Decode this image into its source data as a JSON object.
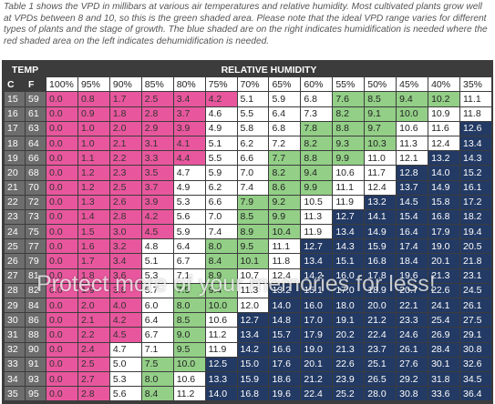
{
  "caption": "Table 1 shows the VPD in millibars at various air temperatures and relative humidity. Most cultivated plants grow well at VPDs between 8 and 10, so this is the green shaded area. Please note that the ideal VPD range varies for different types of plants and the stage of growth. The blue shaded are on the right indicates humidification is needed where the red shaded area on the left indicates dehumidification is needed.",
  "watermark": "Protect more of your memories for less!",
  "colors": {
    "R": "#e8579d",
    "G": "#93cf87",
    "B": "#233a64",
    "W": "#ffffff"
  },
  "text_colors": {
    "R": "#333333",
    "G": "#222222",
    "B": "#ffffff",
    "W": "#222222"
  },
  "table": {
    "temp_header": "TEMP",
    "rh_header": "RELATIVE HUMIDITY",
    "c_header": "C",
    "f_header": "F",
    "columns": [
      "100%",
      "95%",
      "90%",
      "85%",
      "80%",
      "75%",
      "70%",
      "65%",
      "60%",
      "55%",
      "50%",
      "45%",
      "40%",
      "35%"
    ],
    "rows": [
      {
        "c": "15",
        "f": "59",
        "values": [
          "0.0",
          "0.8",
          "1.7",
          "2.5",
          "3.4",
          "4.2",
          "5.1",
          "5.9",
          "6.8",
          "7.6",
          "8.5",
          "9.4",
          "10.2",
          "11.1"
        ],
        "shading": "RRRRRRWWWGGGGW"
      },
      {
        "c": "16",
        "f": "61",
        "values": [
          "0.0",
          "0.9",
          "1.8",
          "2.8",
          "3.7",
          "4.6",
          "5.5",
          "6.4",
          "7.3",
          "8.2",
          "9.1",
          "10.0",
          "10.9",
          "11.8"
        ],
        "shading": "RRRRRWWWWGGGWW"
      },
      {
        "c": "17",
        "f": "63",
        "values": [
          "0.0",
          "1.0",
          "2.0",
          "2.9",
          "3.9",
          "4.9",
          "5.8",
          "6.8",
          "7.8",
          "8.8",
          "9.7",
          "10.6",
          "11.6",
          "12.6"
        ],
        "shading": "RRRRRWWWGGGWWB"
      },
      {
        "c": "18",
        "f": "64",
        "values": [
          "0.0",
          "1.0",
          "2.1",
          "3.1",
          "4.1",
          "5.1",
          "6.2",
          "7.2",
          "8.2",
          "9.3",
          "10.3",
          "11.3",
          "12.4",
          "13.4"
        ],
        "shading": "RRRRRWWWGGGWWB"
      },
      {
        "c": "19",
        "f": "66",
        "values": [
          "0.0",
          "1.1",
          "2.2",
          "3.3",
          "4.4",
          "5.5",
          "6.6",
          "7.7",
          "8.8",
          "9.9",
          "11.0",
          "12.1",
          "13.2",
          "14.3"
        ],
        "shading": "RRRRRWWGGGWWBB"
      },
      {
        "c": "20",
        "f": "68",
        "values": [
          "0.0",
          "1.2",
          "2.3",
          "3.5",
          "4.7",
          "5.9",
          "7.0",
          "8.2",
          "9.4",
          "10.6",
          "11.7",
          "12.8",
          "14.0",
          "15.2"
        ],
        "shading": "RRRRWWWGGWWBBB"
      },
      {
        "c": "21",
        "f": "70",
        "values": [
          "0.0",
          "1.2",
          "2.5",
          "3.7",
          "4.9",
          "6.2",
          "7.4",
          "8.6",
          "9.9",
          "11.1",
          "12.4",
          "13.7",
          "14.9",
          "16.1"
        ],
        "shading": "RRRRWWWGGWWBBB"
      },
      {
        "c": "22",
        "f": "72",
        "values": [
          "0.0",
          "1.3",
          "2.6",
          "3.9",
          "5.3",
          "6.6",
          "7.9",
          "9.2",
          "10.5",
          "11.9",
          "13.2",
          "14.5",
          "15.8",
          "17.2"
        ],
        "shading": "RRRRWWGGWWBBBB"
      },
      {
        "c": "23",
        "f": "73",
        "values": [
          "0.0",
          "1.4",
          "2.8",
          "4.2",
          "5.6",
          "7.0",
          "8.5",
          "9.9",
          "11.3",
          "12.7",
          "14.1",
          "15.4",
          "16.8",
          "18.2"
        ],
        "shading": "RRRRWWGGWBBBBB"
      },
      {
        "c": "24",
        "f": "75",
        "values": [
          "0.0",
          "1.5",
          "3.0",
          "4.5",
          "5.9",
          "7.4",
          "8.9",
          "10.4",
          "11.9",
          "13.4",
          "14.9",
          "16.4",
          "17.9",
          "19.4"
        ],
        "shading": "RRRRWWGGWBBBBB"
      },
      {
        "c": "25",
        "f": "77",
        "values": [
          "0.0",
          "1.6",
          "3.2",
          "4.8",
          "6.4",
          "8.0",
          "9.5",
          "11.1",
          "12.7",
          "14.3",
          "15.9",
          "17.4",
          "19.0",
          "20.5"
        ],
        "shading": "RRRWWGGWBBBBBB"
      },
      {
        "c": "26",
        "f": "79",
        "values": [
          "0.0",
          "1.7",
          "3.4",
          "5.1",
          "6.7",
          "8.4",
          "10.1",
          "11.8",
          "13.4",
          "15.1",
          "16.8",
          "18.4",
          "20.1",
          "21.8"
        ],
        "shading": "RRRWWGGWBBBBBB"
      },
      {
        "c": "27",
        "f": "81",
        "values": [
          "0.0",
          "1.8",
          "3.6",
          "5.3",
          "7.1",
          "8.9",
          "10.7",
          "12.4",
          "14.2",
          "16.0",
          "17.8",
          "19.6",
          "21.3",
          "23.1"
        ],
        "shading": "RRRWWGWWBBBBBB"
      },
      {
        "c": "28",
        "f": "82",
        "values": [
          "0.0",
          "1.9",
          "3.8",
          "5.7",
          "7.5",
          "9.4",
          "11.3",
          "13.2",
          "15.1",
          "17.0",
          "18.9",
          "20.7",
          "22.6",
          "24.5"
        ],
        "shading": "RRRWGGWBBBBBBB"
      },
      {
        "c": "29",
        "f": "84",
        "values": [
          "0.0",
          "2.0",
          "4.0",
          "6.0",
          "8.0",
          "10.0",
          "12.0",
          "14.0",
          "16.0",
          "18.0",
          "20.0",
          "22.1",
          "24.1",
          "26.1"
        ],
        "shading": "RRRWGGWBBBBBBB"
      },
      {
        "c": "30",
        "f": "86",
        "values": [
          "0.0",
          "2.1",
          "4.2",
          "6.4",
          "8.5",
          "10.6",
          "12.7",
          "14.8",
          "17.0",
          "19.1",
          "21.2",
          "23.3",
          "25.4",
          "27.5"
        ],
        "shading": "RRRWGWBBBBBBBB"
      },
      {
        "c": "31",
        "f": "88",
        "values": [
          "0.0",
          "2.2",
          "4.5",
          "6.7",
          "9.0",
          "11.2",
          "13.4",
          "15.7",
          "17.9",
          "20.2",
          "22.4",
          "24.6",
          "26.9",
          "29.1"
        ],
        "shading": "RRRWGWBBBBBBBB"
      },
      {
        "c": "32",
        "f": "90",
        "values": [
          "0.0",
          "2.4",
          "4.7",
          "7.1",
          "9.5",
          "11.9",
          "14.2",
          "16.6",
          "19.0",
          "21.3",
          "23.7",
          "26.1",
          "28.4",
          "30.8"
        ],
        "shading": "RRWWGWBBBBBBBB"
      },
      {
        "c": "33",
        "f": "91",
        "values": [
          "0.0",
          "2.5",
          "5.0",
          "7.5",
          "10.0",
          "12.5",
          "15.0",
          "17.6",
          "20.1",
          "22.6",
          "25.1",
          "27.6",
          "30.1",
          "32.6"
        ],
        "shading": "RRWGGBBBBBBBBB"
      },
      {
        "c": "34",
        "f": "93",
        "values": [
          "0.0",
          "2.7",
          "5.3",
          "8.0",
          "10.6",
          "13.3",
          "15.9",
          "18.6",
          "21.2",
          "23.9",
          "26.5",
          "29.2",
          "31.8",
          "34.5"
        ],
        "shading": "RRWGWBBBBBBBBB"
      },
      {
        "c": "35",
        "f": "95",
        "values": [
          "0.0",
          "2.8",
          "5.6",
          "8.4",
          "11.2",
          "14.0",
          "16.8",
          "19.6",
          "22.4",
          "25.2",
          "28.0",
          "30.8",
          "33.6",
          "36.4"
        ],
        "shading": "RRWGWBBBBBBBBB"
      }
    ]
  }
}
